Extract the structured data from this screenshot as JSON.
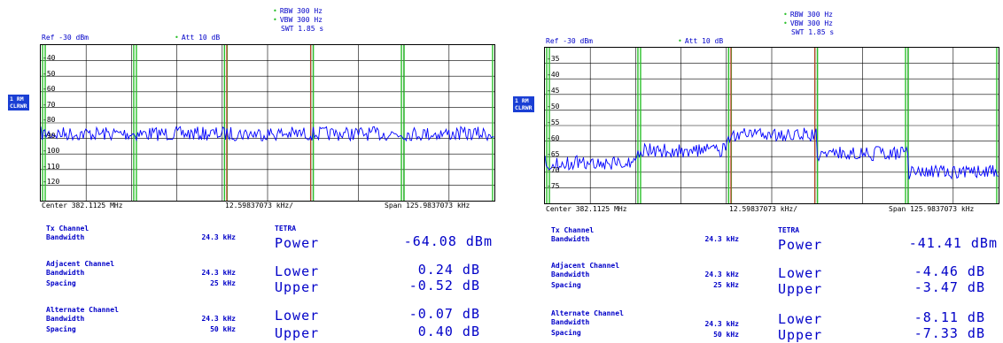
{
  "panels": [
    {
      "header": {
        "rbw": "RBW 300 Hz",
        "vbw": "VBW 300 Hz",
        "swt": "SWT 1.85 s",
        "ref": "Ref -30 dBm",
        "att": "Att  10 dB"
      },
      "trace_tag": {
        "line1": "1 RM",
        "line2": "CLRWR"
      },
      "y_ticks": [
        "-40",
        "-50",
        "-60",
        "-70",
        "-80",
        "-90",
        "-100",
        "-110",
        "-120"
      ],
      "x_axis": {
        "center": "Center 382.1125 MHz",
        "div": "12.59837073 kHz/",
        "span": "Span 125.9837073 kHz"
      },
      "table": {
        "tx_title": "Tx Channel",
        "tx_bw_label": "Bandwidth",
        "tx_bw": "24.3 kHz",
        "std": "TETRA",
        "power_label": "Power",
        "power_value": "-64.08 dBm",
        "adj_title": "Adjacent Channel",
        "adj_bw_label": "Bandwidth",
        "adj_bw": "24.3 kHz",
        "adj_sp_label": "Spacing",
        "adj_sp": "25 kHz",
        "adj_lower_label": "Lower",
        "adj_lower": "0.24 dB",
        "adj_upper_label": "Upper",
        "adj_upper": "-0.52 dB",
        "alt_title": "Alternate Channel",
        "alt_bw_label": "Bandwidth",
        "alt_bw": "24.3 kHz",
        "alt_sp_label": "Spacing",
        "alt_sp": "50 kHz",
        "alt_lower_label": "Lower",
        "alt_lower": "-0.07 dB",
        "alt_upper_label": "Upper",
        "alt_upper": "0.40 dB"
      }
    },
    {
      "header": {
        "rbw": "RBW 300 Hz",
        "vbw": "VBW 300 Hz",
        "swt": "SWT 1.85 s",
        "ref": "Ref -30 dBm",
        "att": "Att  10 dB"
      },
      "trace_tag": {
        "line1": "1 RM",
        "line2": "CLRWR"
      },
      "y_ticks": [
        "-35",
        "-40",
        "-45",
        "-50",
        "-55",
        "-60",
        "-65",
        "-70",
        "-75"
      ],
      "x_axis": {
        "center": "Center 382.1125 MHz",
        "div": "12.59837073 kHz/",
        "span": "Span 125.9837073 kHz"
      },
      "table": {
        "tx_title": "Tx Channel",
        "tx_bw_label": "Bandwidth",
        "tx_bw": "24.3 kHz",
        "std": "TETRA",
        "power_label": "Power",
        "power_value": "-41.41 dBm",
        "adj_title": "Adjacent Channel",
        "adj_bw_label": "Bandwidth",
        "adj_bw": "24.3 kHz",
        "adj_sp_label": "Spacing",
        "adj_sp": "25 kHz",
        "adj_lower_label": "Lower",
        "adj_lower": "-4.46 dB",
        "adj_upper_label": "Upper",
        "adj_upper": "-3.47 dB",
        "alt_title": "Alternate Channel",
        "alt_bw_label": "Bandwidth",
        "alt_bw": "24.3 kHz",
        "alt_sp_label": "Spacing",
        "alt_sp": "50 kHz",
        "alt_lower_label": "Lower",
        "alt_lower": "-8.11 dB",
        "alt_upper_label": "Upper",
        "alt_upper": "-7.33 dB"
      }
    }
  ],
  "colors": {
    "trace": "#0000ff",
    "grid": "#000000",
    "channel_red": "#c0392b",
    "channel_green": "#2ac02a",
    "text": "#0000c8"
  }
}
